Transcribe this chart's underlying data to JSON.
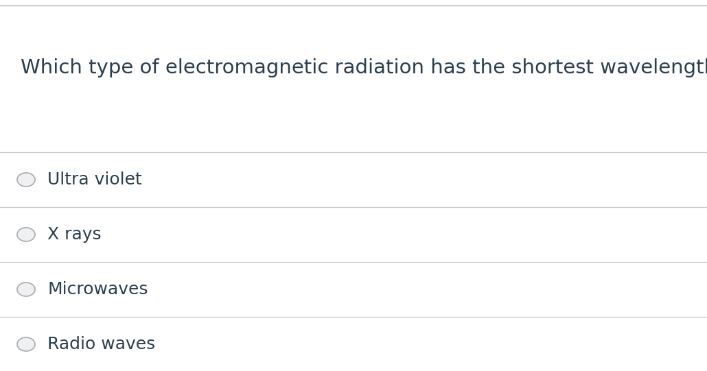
{
  "question": "Which type of electromagnetic radiation has the shortest wavelength?",
  "options": [
    "Ultra violet",
    "X rays",
    "Microwaves",
    "Radio waves"
  ],
  "background_color": "#ffffff",
  "text_color": "#2d3e50",
  "line_color": "#c8c8c8",
  "top_line_color": "#b0b0b0",
  "question_fontsize": 21,
  "option_fontsize": 18,
  "circle_edge_color": "#aab0b8",
  "circle_face_color": "#f0f0f0",
  "fig_width": 10.3,
  "fig_height": 5.41,
  "dpi": 100
}
